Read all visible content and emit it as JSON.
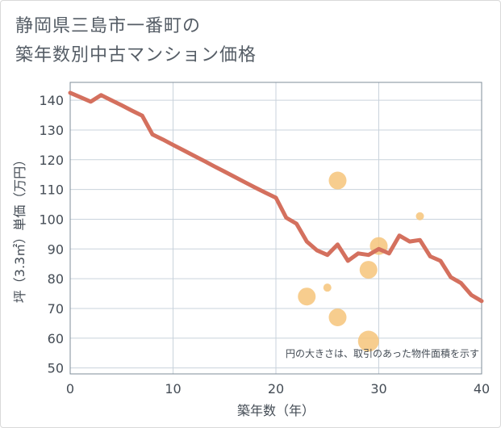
{
  "title_lines": [
    "静岡県三島市一番町の",
    "築年数別中古マンション価格"
  ],
  "chart_data": {
    "type": "line+scatter",
    "xlabel": "築年数（年）",
    "ylabel": "坪（3.3㎡）単価（万円）",
    "xlim": [
      0,
      40
    ],
    "ylim": [
      48,
      146
    ],
    "xticks": [
      0,
      10,
      20,
      30,
      40
    ],
    "yticks": [
      50,
      60,
      70,
      80,
      90,
      100,
      110,
      120,
      130,
      140
    ],
    "note": "円の大きさは、取引のあった物件面積を示す",
    "line_color": "#d4705e",
    "bubble_color": "#f6c47a",
    "grid": true,
    "line": {
      "x": [
        0,
        1,
        2,
        3,
        4,
        5,
        6,
        7,
        8,
        9,
        10,
        11,
        12,
        13,
        14,
        15,
        16,
        17,
        18,
        19,
        20,
        21,
        22,
        23,
        24,
        25,
        26,
        27,
        28,
        29,
        30,
        31,
        32,
        33,
        34,
        35,
        36,
        37,
        38,
        39,
        40
      ],
      "y": [
        142.5,
        141,
        139.5,
        141.7,
        140,
        138.3,
        136.5,
        134.8,
        128.5,
        126.8,
        125,
        123.2,
        121.4,
        119.6,
        117.8,
        116,
        114.2,
        112.4,
        110.6,
        108.9,
        107.2,
        100.5,
        98.5,
        92.5,
        89.5,
        88,
        91.5,
        86,
        88.5,
        88,
        90,
        88.5,
        94.5,
        92.5,
        93,
        87.5,
        86,
        80.5,
        78.5,
        74.5,
        72.5
      ]
    },
    "bubbles": [
      {
        "x": 23,
        "y": 74,
        "size": 22
      },
      {
        "x": 25,
        "y": 77,
        "size": 10
      },
      {
        "x": 26,
        "y": 113,
        "size": 22
      },
      {
        "x": 26,
        "y": 67,
        "size": 22
      },
      {
        "x": 29,
        "y": 83,
        "size": 22
      },
      {
        "x": 29,
        "y": 59,
        "size": 26
      },
      {
        "x": 30,
        "y": 91,
        "size": 22
      },
      {
        "x": 34,
        "y": 101,
        "size": 10
      }
    ]
  }
}
